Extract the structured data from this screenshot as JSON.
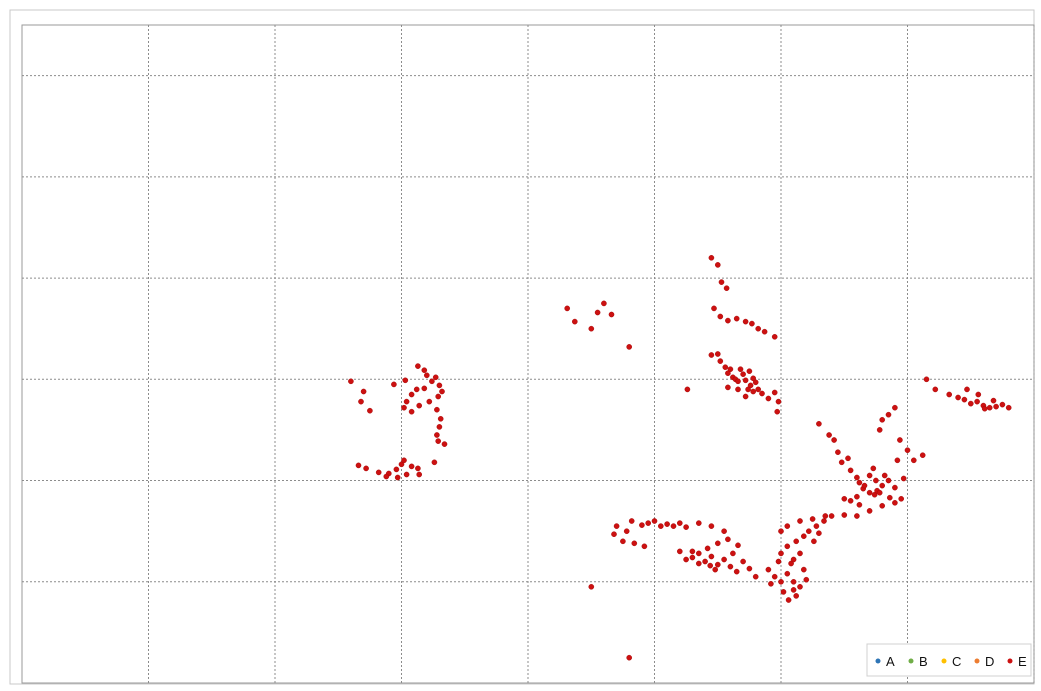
{
  "chart_data": {
    "type": "scatter",
    "title": "",
    "xlabel": "",
    "ylabel": "",
    "xlim": [
      0,
      8
    ],
    "ylim": [
      0,
      6.5
    ],
    "grid": true,
    "legend_position": "bottom-right",
    "series": [
      {
        "name": "A",
        "color": "#2e75b6",
        "points": []
      },
      {
        "name": "B",
        "color": "#70ad47",
        "points": []
      },
      {
        "name": "C",
        "color": "#ffc000",
        "points": []
      },
      {
        "name": "D",
        "color": "#ed7d31",
        "points": []
      },
      {
        "name": "E",
        "color": "#cc1111",
        "points": [
          [
            2.6,
            2.98
          ],
          [
            2.7,
            2.88
          ],
          [
            2.68,
            2.78
          ],
          [
            2.75,
            2.69
          ],
          [
            2.66,
            2.15
          ],
          [
            2.72,
            2.12
          ],
          [
            2.82,
            2.08
          ],
          [
            2.9,
            2.07
          ],
          [
            2.96,
            2.11
          ],
          [
            2.88,
            2.04
          ],
          [
            2.97,
            2.03
          ],
          [
            3.04,
            2.06
          ],
          [
            3.0,
            2.16
          ],
          [
            3.02,
            2.2
          ],
          [
            3.08,
            2.14
          ],
          [
            3.13,
            2.12
          ],
          [
            3.14,
            2.06
          ],
          [
            2.94,
            2.95
          ],
          [
            3.02,
            2.72
          ],
          [
            3.04,
            2.78
          ],
          [
            3.08,
            2.85
          ],
          [
            3.12,
            2.9
          ],
          [
            3.03,
            2.99
          ],
          [
            3.13,
            3.13
          ],
          [
            3.2,
            3.04
          ],
          [
            3.18,
            3.09
          ],
          [
            3.24,
            2.98
          ],
          [
            3.27,
            3.02
          ],
          [
            3.18,
            2.91
          ],
          [
            3.3,
            2.94
          ],
          [
            3.29,
            2.83
          ],
          [
            3.32,
            2.88
          ],
          [
            3.22,
            2.78
          ],
          [
            3.28,
            2.7
          ],
          [
            3.3,
            2.53
          ],
          [
            3.28,
            2.45
          ],
          [
            3.29,
            2.39
          ],
          [
            3.31,
            2.61
          ],
          [
            3.34,
            2.36
          ],
          [
            3.26,
            2.18
          ],
          [
            3.08,
            2.68
          ],
          [
            3.14,
            2.74
          ],
          [
            4.31,
            3.7
          ],
          [
            4.37,
            3.57
          ],
          [
            4.5,
            3.5
          ],
          [
            4.6,
            3.75
          ],
          [
            4.66,
            3.64
          ],
          [
            4.55,
            3.66
          ],
          [
            4.8,
            3.32
          ],
          [
            5.45,
            4.2
          ],
          [
            5.5,
            4.13
          ],
          [
            5.53,
            3.96
          ],
          [
            5.57,
            3.9
          ],
          [
            5.47,
            3.7
          ],
          [
            5.52,
            3.62
          ],
          [
            5.58,
            3.58
          ],
          [
            5.65,
            3.6
          ],
          [
            5.72,
            3.57
          ],
          [
            5.77,
            3.55
          ],
          [
            5.82,
            3.5
          ],
          [
            5.87,
            3.47
          ],
          [
            5.95,
            3.42
          ],
          [
            5.45,
            3.24
          ],
          [
            5.5,
            3.25
          ],
          [
            5.52,
            3.18
          ],
          [
            5.56,
            3.12
          ],
          [
            5.58,
            3.06
          ],
          [
            5.6,
            3.1
          ],
          [
            5.62,
            3.02
          ],
          [
            5.64,
            3.0
          ],
          [
            5.66,
            2.98
          ],
          [
            5.68,
            3.1
          ],
          [
            5.7,
            3.05
          ],
          [
            5.72,
            2.99
          ],
          [
            5.75,
            3.08
          ],
          [
            5.76,
            2.94
          ],
          [
            5.78,
            3.01
          ],
          [
            5.8,
            2.97
          ],
          [
            5.74,
            2.9
          ],
          [
            5.66,
            2.9
          ],
          [
            5.58,
            2.92
          ],
          [
            5.82,
            2.9
          ],
          [
            5.85,
            2.86
          ],
          [
            5.9,
            2.81
          ],
          [
            5.95,
            2.87
          ],
          [
            5.98,
            2.78
          ],
          [
            5.97,
            2.68
          ],
          [
            5.26,
            2.9
          ],
          [
            5.72,
            2.83
          ],
          [
            5.78,
            2.88
          ],
          [
            6.3,
            2.56
          ],
          [
            6.38,
            2.45
          ],
          [
            6.42,
            2.4
          ],
          [
            6.45,
            2.28
          ],
          [
            6.48,
            2.18
          ],
          [
            6.53,
            2.22
          ],
          [
            6.55,
            2.1
          ],
          [
            6.6,
            2.03
          ],
          [
            6.62,
            1.98
          ],
          [
            6.65,
            1.92
          ],
          [
            6.7,
            1.88
          ],
          [
            6.74,
            1.86
          ],
          [
            6.76,
            1.9
          ],
          [
            6.8,
            1.95
          ],
          [
            6.85,
            2.0
          ],
          [
            6.9,
            1.93
          ],
          [
            6.7,
            2.05
          ],
          [
            6.6,
            1.84
          ],
          [
            6.55,
            1.8
          ],
          [
            6.5,
            1.82
          ],
          [
            6.66,
            1.95
          ],
          [
            6.75,
            2.0
          ],
          [
            6.82,
            2.05
          ],
          [
            6.78,
            1.88
          ],
          [
            6.62,
            1.76
          ],
          [
            6.73,
            2.12
          ],
          [
            6.92,
            2.2
          ],
          [
            6.94,
            2.4
          ],
          [
            6.97,
            2.02
          ],
          [
            6.86,
            1.83
          ],
          [
            6.78,
            2.5
          ],
          [
            6.8,
            2.6
          ],
          [
            6.85,
            2.65
          ],
          [
            6.9,
            2.72
          ],
          [
            7.05,
            2.2
          ],
          [
            7.12,
            2.25
          ],
          [
            7.0,
            2.3
          ],
          [
            7.15,
            3.0
          ],
          [
            7.22,
            2.9
          ],
          [
            7.33,
            2.85
          ],
          [
            7.4,
            2.82
          ],
          [
            7.45,
            2.8
          ],
          [
            7.5,
            2.76
          ],
          [
            7.55,
            2.78
          ],
          [
            7.6,
            2.74
          ],
          [
            7.65,
            2.72
          ],
          [
            7.7,
            2.73
          ],
          [
            7.75,
            2.75
          ],
          [
            7.8,
            2.72
          ],
          [
            7.56,
            2.85
          ],
          [
            7.47,
            2.9
          ],
          [
            7.61,
            2.71
          ],
          [
            7.68,
            2.79
          ],
          [
            4.7,
            1.55
          ],
          [
            4.78,
            1.5
          ],
          [
            4.82,
            1.6
          ],
          [
            4.9,
            1.56
          ],
          [
            4.95,
            1.58
          ],
          [
            5.0,
            1.6
          ],
          [
            5.05,
            1.55
          ],
          [
            5.1,
            1.57
          ],
          [
            5.15,
            1.55
          ],
          [
            5.2,
            1.58
          ],
          [
            5.25,
            1.54
          ],
          [
            5.35,
            1.58
          ],
          [
            5.45,
            1.55
          ],
          [
            5.55,
            1.5
          ],
          [
            4.75,
            1.4
          ],
          [
            4.84,
            1.38
          ],
          [
            4.92,
            1.35
          ],
          [
            4.68,
            1.47
          ],
          [
            5.2,
            1.3
          ],
          [
            5.25,
            1.22
          ],
          [
            5.3,
            1.24
          ],
          [
            5.35,
            1.18
          ],
          [
            5.4,
            1.2
          ],
          [
            5.45,
            1.25
          ],
          [
            5.5,
            1.17
          ],
          [
            5.55,
            1.22
          ],
          [
            5.6,
            1.15
          ],
          [
            5.65,
            1.1
          ],
          [
            5.7,
            1.2
          ],
          [
            5.75,
            1.13
          ],
          [
            5.8,
            1.05
          ],
          [
            5.3,
            1.3
          ],
          [
            5.42,
            1.33
          ],
          [
            5.5,
            1.38
          ],
          [
            5.58,
            1.42
          ],
          [
            5.66,
            1.36
          ],
          [
            5.62,
            1.28
          ],
          [
            5.48,
            1.12
          ],
          [
            5.35,
            1.28
          ],
          [
            5.44,
            1.16
          ],
          [
            5.9,
            1.12
          ],
          [
            5.95,
            1.05
          ],
          [
            6.0,
            1.0
          ],
          [
            6.05,
            1.08
          ],
          [
            6.1,
            1.0
          ],
          [
            6.15,
            0.95
          ],
          [
            6.2,
            1.02
          ],
          [
            6.1,
            0.92
          ],
          [
            6.02,
            0.9
          ],
          [
            5.98,
            1.2
          ],
          [
            6.08,
            1.18
          ],
          [
            6.18,
            1.12
          ],
          [
            6.12,
            0.86
          ],
          [
            6.06,
            0.82
          ],
          [
            6.0,
            1.28
          ],
          [
            5.92,
            0.98
          ],
          [
            6.0,
            1.5
          ],
          [
            6.05,
            1.55
          ],
          [
            6.15,
            1.6
          ],
          [
            6.25,
            1.62
          ],
          [
            6.35,
            1.65
          ],
          [
            6.5,
            1.66
          ],
          [
            6.6,
            1.65
          ],
          [
            6.7,
            1.7
          ],
          [
            6.8,
            1.75
          ],
          [
            6.9,
            1.78
          ],
          [
            6.95,
            1.82
          ],
          [
            6.05,
            1.35
          ],
          [
            6.12,
            1.4
          ],
          [
            6.18,
            1.45
          ],
          [
            6.22,
            1.5
          ],
          [
            6.28,
            1.55
          ],
          [
            6.15,
            1.28
          ],
          [
            6.1,
            1.22
          ],
          [
            6.26,
            1.4
          ],
          [
            6.3,
            1.48
          ],
          [
            6.34,
            1.6
          ],
          [
            6.4,
            1.65
          ],
          [
            4.5,
            0.95
          ],
          [
            4.8,
            0.25
          ]
        ]
      }
    ]
  }
}
